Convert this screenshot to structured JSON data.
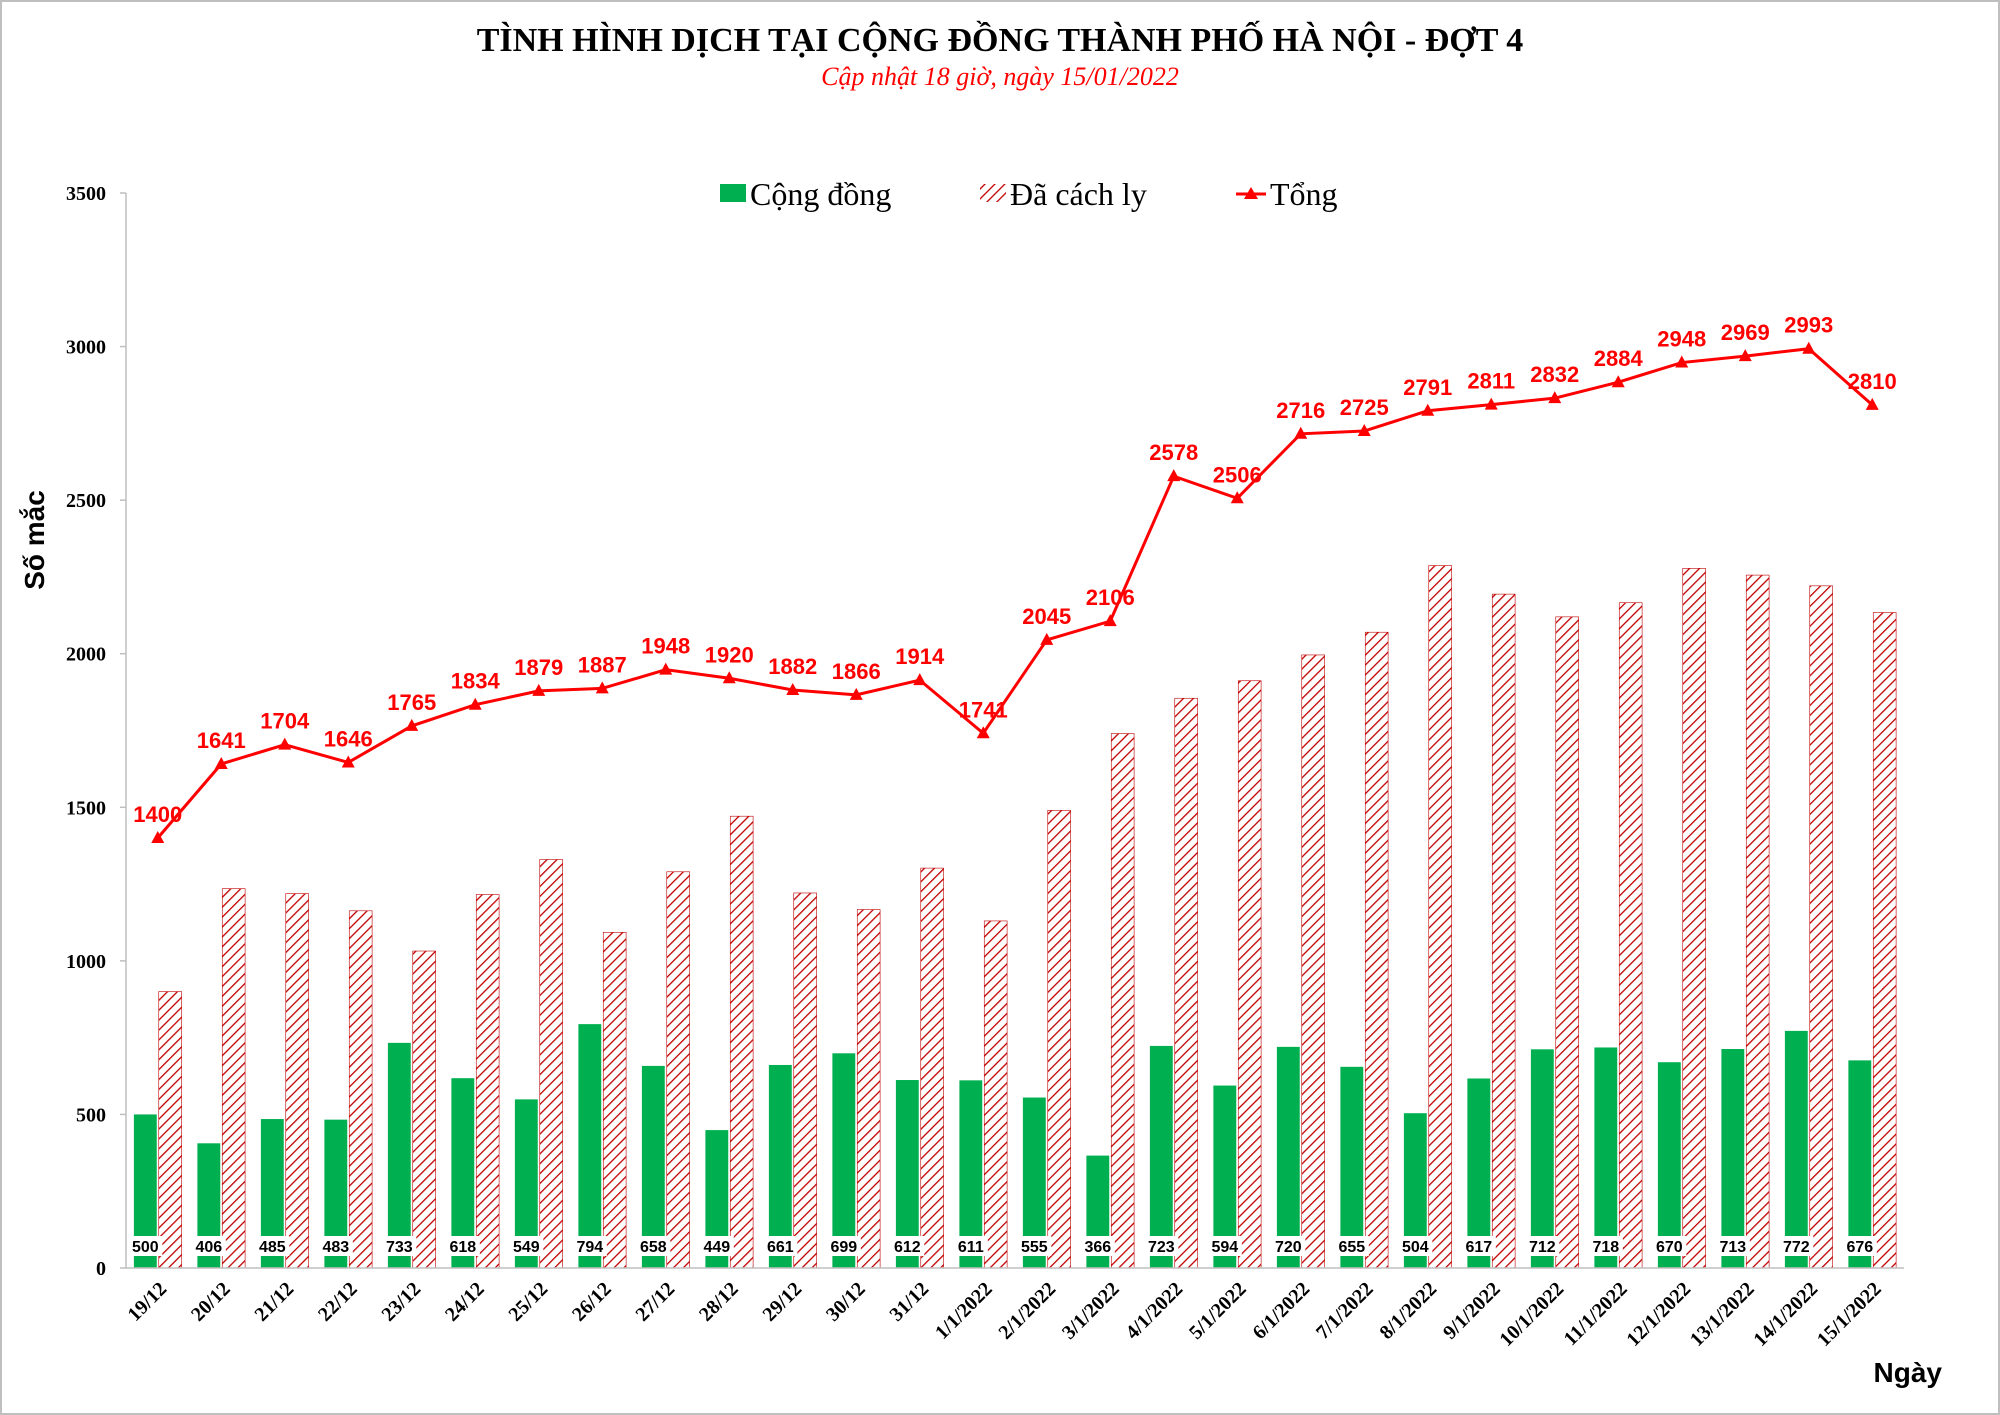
{
  "title": "TÌNH HÌNH DỊCH TẠI CỘNG ĐỒNG THÀNH PHỐ HÀ NỘI - ĐỢT 4",
  "subtitle": "Cập nhật 18 giờ, ngày 15/01/2022",
  "colors": {
    "community": "#00b050",
    "quarantined": "#c00000",
    "total": "#ff0000"
  },
  "chart_data": {
    "type": "bar",
    "xlabel": "Ngày",
    "ylabel": "Số mắc",
    "ylim": [
      0,
      3500
    ],
    "yticks": [
      0,
      500,
      1000,
      1500,
      2000,
      2500,
      3000,
      3500
    ],
    "grid": false,
    "legend_position": "top",
    "categories": [
      "19/12",
      "20/12",
      "21/12",
      "22/12",
      "23/12",
      "24/12",
      "25/12",
      "26/12",
      "27/12",
      "28/12",
      "29/12",
      "30/12",
      "31/12",
      "1/1/2022",
      "2/1/2022",
      "3/1/2022",
      "4/1/2022",
      "5/1/2022",
      "6/1/2022",
      "7/1/2022",
      "8/1/2022",
      "9/1/2022",
      "10/1/2022",
      "11/1/2022",
      "12/1/2022",
      "13/1/2022",
      "14/1/2022",
      "15/1/2022"
    ],
    "series": [
      {
        "name": "Cộng đồng",
        "kind": "bar",
        "values": [
          500,
          406,
          485,
          483,
          733,
          618,
          549,
          794,
          658,
          449,
          661,
          699,
          612,
          611,
          555,
          366,
          723,
          594,
          720,
          655,
          504,
          617,
          712,
          718,
          670,
          713,
          772,
          676
        ]
      },
      {
        "name": "Đã cách ly",
        "kind": "bar-hatched",
        "values": [
          900,
          1235,
          1219,
          1163,
          1032,
          1216,
          1330,
          1093,
          1290,
          1471,
          1221,
          1167,
          1302,
          1130,
          1490,
          1740,
          1855,
          1912,
          1996,
          2070,
          2287,
          2194,
          2120,
          2166,
          2278,
          2256,
          2221,
          2134
        ]
      },
      {
        "name": "Tổng",
        "kind": "line",
        "values": [
          1400,
          1641,
          1704,
          1646,
          1765,
          1834,
          1879,
          1887,
          1948,
          1920,
          1882,
          1866,
          1914,
          1741,
          2045,
          2106,
          2578,
          2506,
          2716,
          2725,
          2791,
          2811,
          2832,
          2884,
          2948,
          2969,
          2993,
          2810
        ]
      }
    ]
  }
}
